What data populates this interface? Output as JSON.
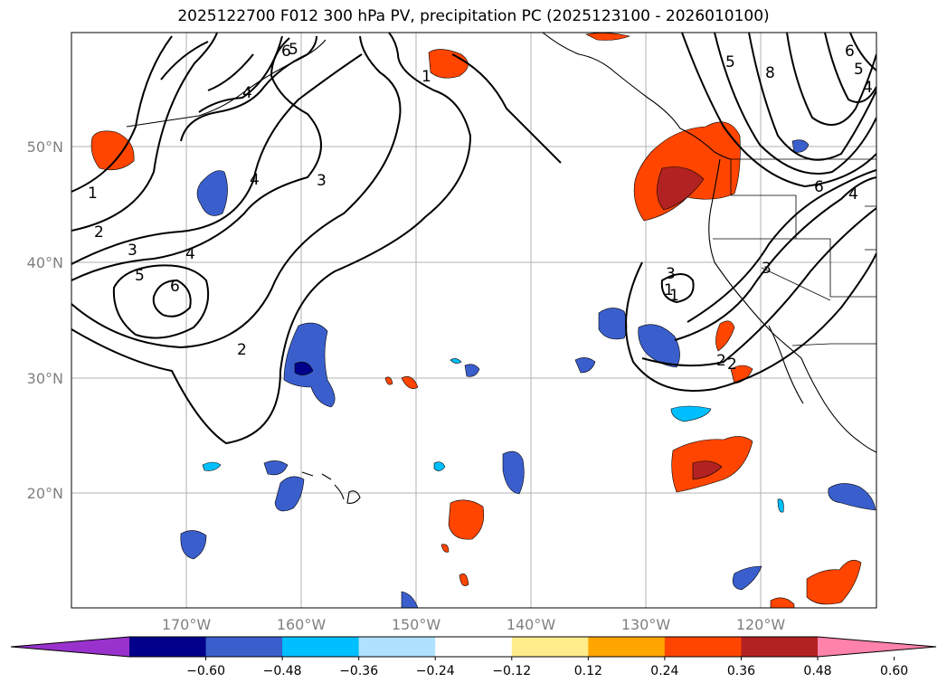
{
  "title": "2025122700 F012 300 hPa PV, precipitation PC (2025123100 - 2026010100)",
  "lat_labels": [
    "50°N",
    "40°N",
    "30°N",
    "20°N"
  ],
  "lon_labels": [
    "170°W",
    "160°W",
    "150°W",
    "140°W",
    "130°W",
    "120°W"
  ],
  "colorbar": {
    "ticks": [
      "−0.60",
      "−0.48",
      "−0.36",
      "−0.24",
      "−0.12",
      "0.12",
      "0.24",
      "0.36",
      "0.48",
      "0.60"
    ],
    "colors": [
      "#9932cc",
      "#00008b",
      "#3a5fcd",
      "#00bfff",
      "#b0e2ff",
      "#ffffff",
      "#ffec8b",
      "#ffa500",
      "#ff4500",
      "#b22222",
      "#ff82ab"
    ]
  },
  "contour_labels": [
    "1",
    "2",
    "3",
    "4",
    "5",
    "6",
    "4",
    "3",
    "4",
    "1",
    "5",
    "6",
    "1",
    "2",
    "3",
    "5",
    "8",
    "6",
    "5",
    "4",
    "6",
    "4",
    "2",
    "3",
    "1",
    "2"
  ]
}
